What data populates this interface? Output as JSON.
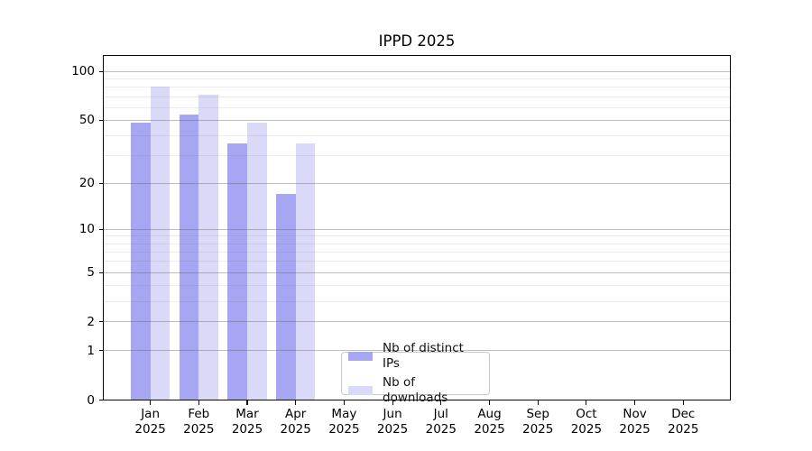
{
  "title": "IPPD 2025",
  "chart_data": {
    "type": "bar",
    "title": "IPPD 2025",
    "categories": [
      "Jan 2025",
      "Feb 2025",
      "Mar 2025",
      "Apr 2025",
      "May 2025",
      "Jun 2025",
      "Jul 2025",
      "Aug 2025",
      "Sep 2025",
      "Oct 2025",
      "Nov 2025",
      "Dec 2025"
    ],
    "series": [
      {
        "name": "Nb of distinct IPs",
        "color": "#a6a6f2",
        "values": [
          48,
          54,
          36,
          17,
          null,
          null,
          null,
          null,
          null,
          null,
          null,
          null
        ]
      },
      {
        "name": "Nb of downloads",
        "color": "#dadaf8",
        "values": [
          81,
          72,
          48,
          36,
          null,
          null,
          null,
          null,
          null,
          null,
          null,
          null
        ]
      }
    ],
    "yscale": "log1p",
    "y_axis": {
      "major_ticks": [
        0,
        1,
        2,
        5,
        10,
        20,
        50,
        100
      ],
      "minor_ticks": [
        3,
        4,
        6,
        7,
        8,
        9,
        30,
        40,
        60,
        70,
        80,
        90
      ],
      "ylim": [
        0,
        126
      ]
    },
    "xlabel": "",
    "ylabel": "",
    "grid": "horizontal major+minor, drawn over bars",
    "legend_position": "lower center"
  },
  "colors": {
    "background": "#ffffff",
    "frame": "#0a0a0a",
    "major_grid": "rgba(100,100,100,0.42)",
    "minor_grid": "rgba(110,110,110,0.14)",
    "legend_border": "#c9c9c9",
    "text": "#000000"
  }
}
